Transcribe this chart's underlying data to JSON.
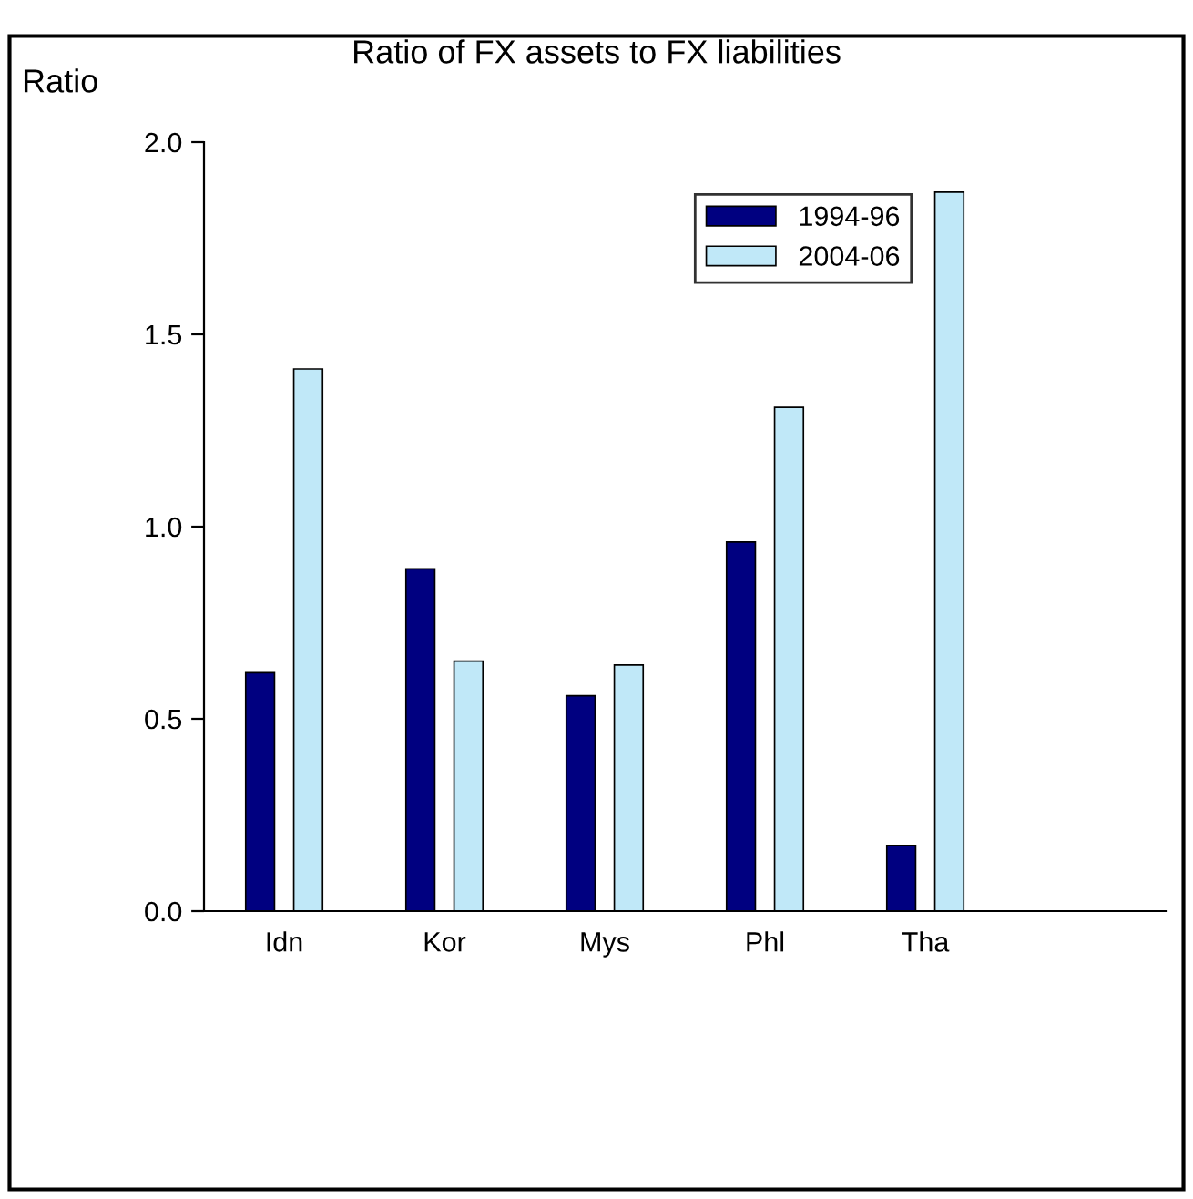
{
  "chart_data": {
    "type": "bar",
    "title": "Ratio of FX assets to FX liabilities",
    "ylabel": "Ratio",
    "categories": [
      "Idn",
      "Kor",
      "Mys",
      "Phl",
      "Tha"
    ],
    "series": [
      {
        "name": "1994-96",
        "color": "#000080",
        "values": [
          0.62,
          0.89,
          0.56,
          0.96,
          0.17
        ]
      },
      {
        "name": "2004-06",
        "color": "#c0e8f8",
        "values": [
          1.41,
          0.65,
          0.64,
          1.31,
          1.87
        ]
      }
    ],
    "ylim": [
      0,
      2
    ],
    "yticks": [
      {
        "value": 0,
        "label": "0.0"
      },
      0.5,
      {
        "value": 1,
        "label": "1.0"
      },
      1.5,
      {
        "value": 2,
        "label": "2.0"
      }
    ],
    "grid": false,
    "legend": "top right"
  }
}
